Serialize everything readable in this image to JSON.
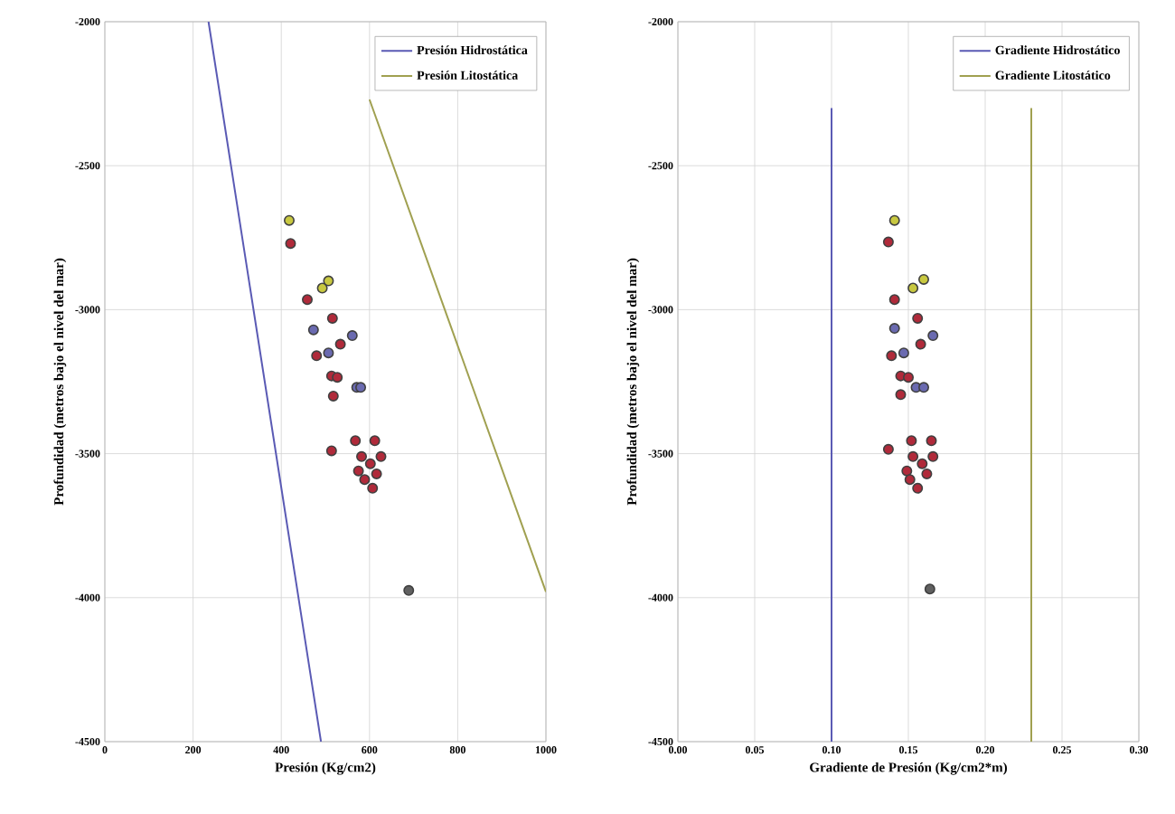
{
  "chart_data": [
    {
      "type": "scatter",
      "xlabel": "Presión (Kg/cm2)",
      "ylabel": "Profundidad (metros bajo el nivel del mar)",
      "xlim": [
        0,
        1000
      ],
      "ylim": [
        -4500,
        -2000
      ],
      "xticks": [
        0,
        200,
        400,
        600,
        800,
        1000
      ],
      "yticks": [
        -4500,
        -4000,
        -3500,
        -3000,
        -2500,
        -2000
      ],
      "grid": true,
      "legend": "top right",
      "marker": "circle",
      "series": [
        {
          "name": "Presión Hidrostática",
          "type": "line",
          "marker": "none",
          "color": "#5a5ab4",
          "x": [
            235,
            490
          ],
          "values": [
            -2000,
            -4500
          ]
        },
        {
          "name": "Presión Litostática",
          "type": "line",
          "marker": "none",
          "color": "#a0a050",
          "x": [
            600,
            1000
          ],
          "values": [
            -2270,
            -3980
          ]
        },
        {
          "color": "#b02a3a",
          "x": [
            421,
            459,
            516,
            534,
            480,
            514,
            527,
            518,
            514,
            568,
            612,
            582,
            626,
            602,
            575,
            616,
            589,
            607
          ],
          "values": [
            -2770,
            -2965,
            -3030,
            -3120,
            -3160,
            -3230,
            -3235,
            -3300,
            -3490,
            -3455,
            -3455,
            -3510,
            -3510,
            -3535,
            -3560,
            -3570,
            -3590,
            -3620
          ]
        },
        {
          "color": "#6a6ab0",
          "x": [
            473,
            561,
            507,
            571,
            580
          ],
          "values": [
            -3070,
            -3090,
            -3150,
            -3270,
            -3270
          ]
        },
        {
          "color": "#c8c840",
          "x": [
            418,
            507,
            493
          ],
          "values": [
            -2690,
            -2900,
            -2925
          ]
        },
        {
          "color": "#606060",
          "x": [
            689
          ],
          "values": [
            -3975
          ]
        }
      ]
    },
    {
      "type": "scatter",
      "xlabel": "Gradiente de Presión (Kg/cm2*m)",
      "ylabel": "Profundidad (metros bajo el nivel del mar)",
      "xlim": [
        0,
        0.3
      ],
      "ylim": [
        -4500,
        -2000
      ],
      "xticks": [
        {
          "value": 0,
          "label": "0.00"
        },
        {
          "value": 0.05,
          "label": "0.05"
        },
        {
          "value": 0.1,
          "label": "0.10"
        },
        {
          "value": 0.15,
          "label": "0.15"
        },
        {
          "value": 0.2,
          "label": "0.20"
        },
        {
          "value": 0.25,
          "label": "0.25"
        },
        {
          "value": 0.3,
          "label": "0.30"
        }
      ],
      "yticks": [
        -4500,
        -4000,
        -3500,
        -3000,
        -2500,
        -2000
      ],
      "grid": true,
      "legend": "top right",
      "marker": "circle",
      "series": [
        {
          "name": "Gradiente Hidrostático",
          "type": "line",
          "marker": "none",
          "color": "#5a5ab4",
          "x": [
            0.1,
            0.1
          ],
          "values": [
            -2300,
            -4500
          ]
        },
        {
          "name": "Gradiente Litostático",
          "type": "line",
          "marker": "none",
          "color": "#a0a050",
          "x": [
            0.23,
            0.23
          ],
          "values": [
            -2300,
            -4500
          ]
        },
        {
          "color": "#b02a3a",
          "x": [
            0.137,
            0.141,
            0.156,
            0.158,
            0.139,
            0.145,
            0.15,
            0.145,
            0.137,
            0.152,
            0.165,
            0.153,
            0.166,
            0.159,
            0.149,
            0.162,
            0.151,
            0.156
          ],
          "values": [
            -2765,
            -2965,
            -3030,
            -3120,
            -3160,
            -3230,
            -3235,
            -3295,
            -3485,
            -3455,
            -3455,
            -3510,
            -3510,
            -3535,
            -3560,
            -3570,
            -3590,
            -3620
          ]
        },
        {
          "color": "#6a6ab0",
          "x": [
            0.141,
            0.166,
            0.147,
            0.155,
            0.16
          ],
          "values": [
            -3065,
            -3090,
            -3150,
            -3270,
            -3270
          ]
        },
        {
          "color": "#c8c840",
          "x": [
            0.141,
            0.16,
            0.153
          ],
          "values": [
            -2690,
            -2895,
            -2925
          ]
        },
        {
          "color": "#606060",
          "x": [
            0.164
          ],
          "values": [
            -3970
          ]
        }
      ]
    }
  ]
}
